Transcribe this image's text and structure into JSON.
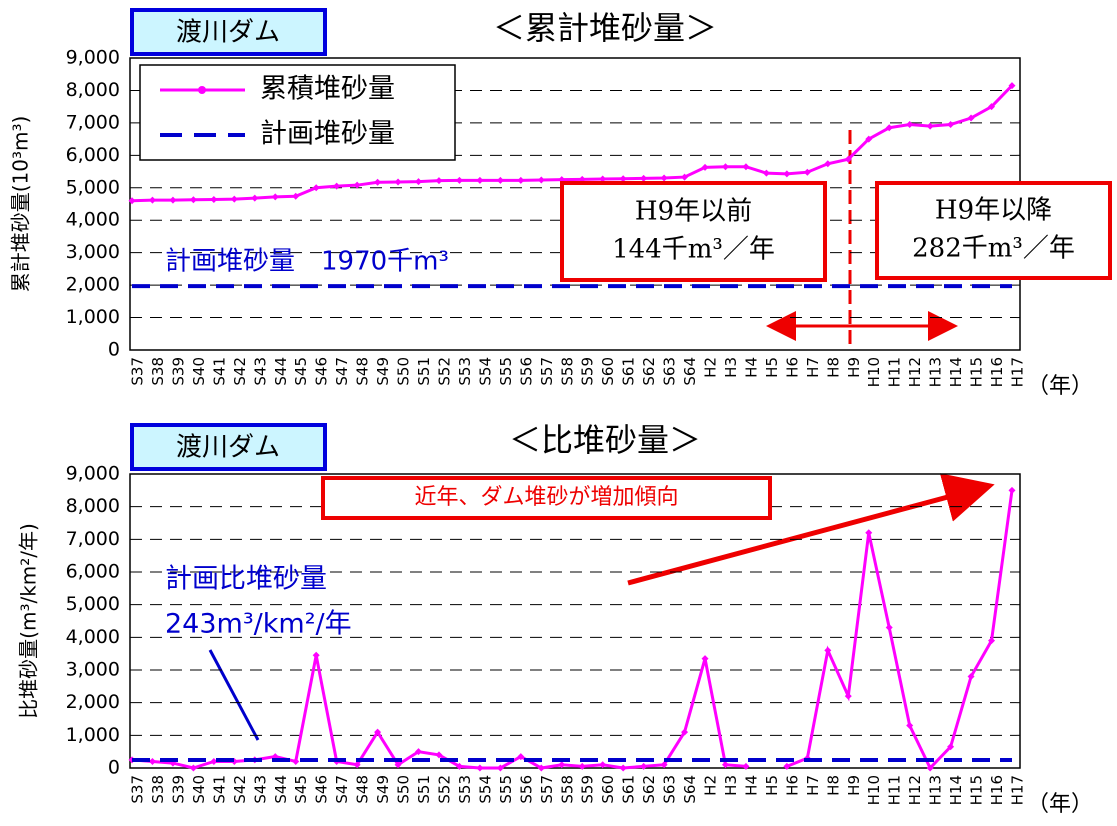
{
  "chart_data": [
    {
      "type": "line",
      "label": "渡川ダム",
      "title": "＜累計堆砂量＞",
      "ylabel": "累計堆砂量(10³m³)",
      "xunit": "（年）",
      "categories": [
        "S37",
        "S38",
        "S39",
        "S40",
        "S41",
        "S42",
        "S43",
        "S44",
        "S45",
        "S46",
        "S47",
        "S48",
        "S49",
        "S50",
        "S51",
        "S52",
        "S53",
        "S54",
        "S55",
        "S56",
        "S57",
        "S58",
        "S59",
        "S60",
        "S61",
        "S62",
        "S63",
        "S64",
        "H2",
        "H3",
        "H4",
        "H5",
        "H6",
        "H7",
        "H8",
        "H9",
        "H10",
        "H11",
        "H12",
        "H13",
        "H14",
        "H15",
        "H16",
        "H17"
      ],
      "series": [
        {
          "name": "累積堆砂量",
          "color": "#ff00ff",
          "style": "solid",
          "markers": true,
          "values": [
            4600,
            4620,
            4620,
            4630,
            4640,
            4650,
            4680,
            4720,
            4740,
            5000,
            5050,
            5080,
            5170,
            5180,
            5190,
            5220,
            5230,
            5230,
            5230,
            5230,
            5240,
            5250,
            5260,
            5270,
            5280,
            5290,
            5300,
            5330,
            5630,
            5650,
            5650,
            5450,
            5430,
            5480,
            5740,
            5880,
            6500,
            6850,
            6950,
            6900,
            6950,
            7150,
            7500,
            8150
          ]
        },
        {
          "name": "計画堆砂量",
          "color": "#0000cc",
          "style": "dashed",
          "markers": false,
          "values": [
            1970,
            1970,
            1970,
            1970,
            1970,
            1970,
            1970,
            1970,
            1970,
            1970,
            1970,
            1970,
            1970,
            1970,
            1970,
            1970,
            1970,
            1970,
            1970,
            1970,
            1970,
            1970,
            1970,
            1970,
            1970,
            1970,
            1970,
            1970,
            1970,
            1970,
            1970,
            1970,
            1970,
            1970,
            1970,
            1970,
            1970,
            1970,
            1970,
            1970,
            1970,
            1970,
            1970,
            1970
          ]
        }
      ],
      "ylim": [
        0,
        9000
      ],
      "yticks": [
        0,
        {
          "value": 1000,
          "label": "1,000"
        },
        {
          "value": 2000,
          "label": "2,000"
        },
        {
          "value": 3000,
          "label": "3,000"
        },
        {
          "value": 4000,
          "label": "4,000"
        },
        {
          "value": 5000,
          "label": "5,000"
        },
        {
          "value": 6000,
          "label": "6,000"
        },
        {
          "value": 7000,
          "label": "7,000"
        },
        {
          "value": 8000,
          "label": "8,000"
        },
        {
          "value": 9000,
          "label": "9,000"
        }
      ],
      "grid": true,
      "legend": "upper left",
      "annotations": [
        {
          "lines": [
            "計画堆砂量　1970千m³"
          ],
          "color": "#0000cc"
        },
        {
          "lines": [
            "H9年以前",
            "144千m³／年"
          ],
          "color": "#000",
          "box": "#ee0000"
        },
        {
          "lines": [
            "H9年以降",
            "282千m³／年"
          ],
          "color": "#000",
          "box": "#ee0000"
        }
      ]
    },
    {
      "type": "line",
      "label": "渡川ダム",
      "title": "＜比堆砂量＞",
      "ylabel": "比堆砂量(m³/km²/年)",
      "xunit": "（年）",
      "categories": [
        "S37",
        "S38",
        "S39",
        "S40",
        "S41",
        "S42",
        "S43",
        "S44",
        "S45",
        "S46",
        "S47",
        "S48",
        "S49",
        "S50",
        "S51",
        "S52",
        "S53",
        "S54",
        "S55",
        "S56",
        "S57",
        "S58",
        "S59",
        "S60",
        "S61",
        "S62",
        "S63",
        "S64",
        "H2",
        "H3",
        "H4",
        "H5",
        "H6",
        "H7",
        "H8",
        "H9",
        "H10",
        "H11",
        "H12",
        "H13",
        "H14",
        "H15",
        "H16",
        "H17"
      ],
      "series": [
        {
          "color": "#ff00ff",
          "style": "solid",
          "markers": true,
          "values": [
            250,
            200,
            150,
            0,
            200,
            200,
            250,
            350,
            200,
            3450,
            200,
            100,
            1100,
            100,
            500,
            400,
            50,
            0,
            0,
            350,
            0,
            100,
            50,
            100,
            0,
            50,
            100,
            1100,
            3350,
            100,
            50,
            null,
            50,
            300,
            3600,
            2200,
            7200,
            4300,
            1300,
            0,
            650,
            2800,
            3900,
            8500
          ]
        },
        {
          "color": "#0000cc",
          "style": "dashed",
          "markers": false,
          "values": [
            243,
            243,
            243,
            243,
            243,
            243,
            243,
            243,
            243,
            243,
            243,
            243,
            243,
            243,
            243,
            243,
            243,
            243,
            243,
            243,
            243,
            243,
            243,
            243,
            243,
            243,
            243,
            243,
            243,
            243,
            243,
            243,
            243,
            243,
            243,
            243,
            243,
            243,
            243,
            243,
            243,
            243,
            243,
            243
          ]
        }
      ],
      "ylim": [
        0,
        9000
      ],
      "yticks": [
        0,
        {
          "value": 1000,
          "label": "1,000"
        },
        {
          "value": 2000,
          "label": "2,000"
        },
        {
          "value": 3000,
          "label": "3,000"
        },
        {
          "value": 4000,
          "label": "4,000"
        },
        {
          "value": 5000,
          "label": "5,000"
        },
        {
          "value": 6000,
          "label": "6,000"
        },
        {
          "value": 7000,
          "label": "7,000"
        },
        {
          "value": 8000,
          "label": "8,000"
        },
        {
          "value": 9000,
          "label": "9,000"
        }
      ],
      "grid": true,
      "annotations": [
        {
          "lines": [
            "近年、ダム堆砂が増加傾向"
          ],
          "color": "#ee0000",
          "box": "#ee0000"
        },
        {
          "lines": [
            "計画比堆砂量",
            "243m³/km²/年"
          ],
          "color": "#0000cc"
        }
      ]
    }
  ]
}
